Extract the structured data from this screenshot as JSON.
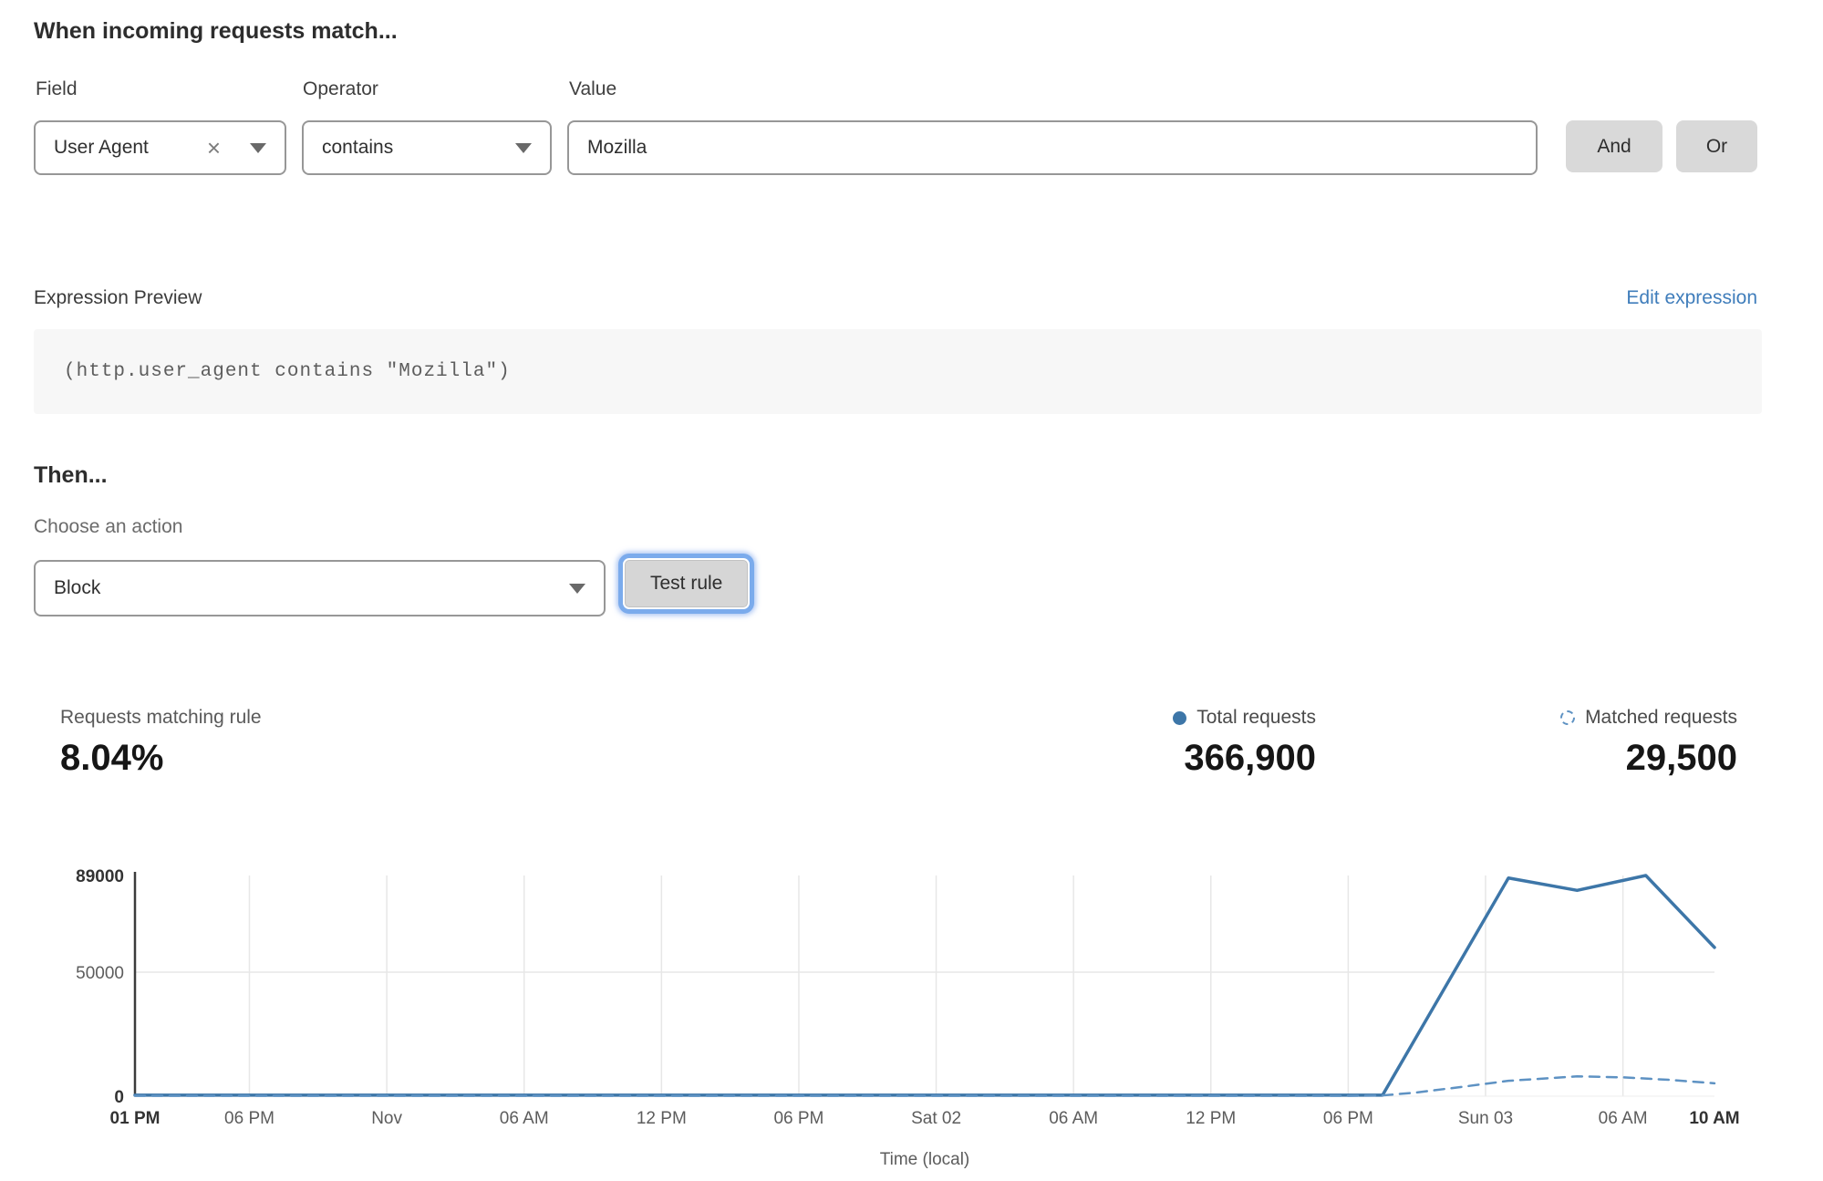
{
  "match": {
    "heading": "When incoming requests match...",
    "field_label": "Field",
    "field_value": "User Agent",
    "clear_icon": "×",
    "operator_label": "Operator",
    "operator_value": "contains",
    "value_label": "Value",
    "value_text": "Mozilla",
    "and_label": "And",
    "or_label": "Or"
  },
  "expression": {
    "label": "Expression Preview",
    "edit_link": "Edit expression",
    "code": "(http.user_agent contains \"Mozilla\")"
  },
  "then": {
    "heading": "Then...",
    "action_label": "Choose an action",
    "action_value": "Block",
    "test_button_label": "Test rule"
  },
  "stats": {
    "matching_label": "Requests matching rule",
    "matching_value": "8.04%",
    "total_value": "366,900",
    "matched_value": "29,500"
  },
  "colors": {
    "accent_blue": "#3d76a8",
    "dashed_blue": "#5e92c3",
    "link_blue": "#3f7dbb",
    "focus_ring": "#7babec",
    "button_gray": "#d9d9d9",
    "grid_gray": "#e7e7e7"
  },
  "chart_data": {
    "type": "line",
    "title": "",
    "xlabel": "Time (local)",
    "ylabel": "",
    "x_unit": "hours after first tick (01 PM)",
    "xlim": [
      0,
      69
    ],
    "ylim": [
      0,
      89000
    ],
    "grid": true,
    "legend_position": "above-chart-right",
    "y_ticks": [
      {
        "v": 0,
        "label": "0",
        "bold": true
      },
      {
        "v": 50000,
        "label": "50000",
        "bold": false
      },
      {
        "v": 89000,
        "label": "89000",
        "bold": true
      }
    ],
    "x_ticks": [
      {
        "h": 0,
        "label": "01 PM",
        "bold": true,
        "grid": false
      },
      {
        "h": 5,
        "label": "06 PM",
        "bold": false,
        "grid": true
      },
      {
        "h": 11,
        "label": "Nov",
        "bold": false,
        "grid": true
      },
      {
        "h": 17,
        "label": "06 AM",
        "bold": false,
        "grid": true
      },
      {
        "h": 23,
        "label": "12 PM",
        "bold": false,
        "grid": true
      },
      {
        "h": 29,
        "label": "06 PM",
        "bold": false,
        "grid": true
      },
      {
        "h": 35,
        "label": "Sat 02",
        "bold": false,
        "grid": true
      },
      {
        "h": 41,
        "label": "06 AM",
        "bold": false,
        "grid": true
      },
      {
        "h": 47,
        "label": "12 PM",
        "bold": false,
        "grid": true
      },
      {
        "h": 53,
        "label": "06 PM",
        "bold": false,
        "grid": true
      },
      {
        "h": 59,
        "label": "Sun 03",
        "bold": false,
        "grid": true
      },
      {
        "h": 65,
        "label": "06 AM",
        "bold": false,
        "grid": true
      },
      {
        "h": 69,
        "label": "10 AM",
        "bold": true,
        "grid": false
      }
    ],
    "series": [
      {
        "name": "Total requests",
        "style": "solid",
        "color": "#3d76a8",
        "points": [
          [
            0,
            400
          ],
          [
            5,
            400
          ],
          [
            11,
            400
          ],
          [
            17,
            400
          ],
          [
            23,
            400
          ],
          [
            29,
            400
          ],
          [
            35,
            400
          ],
          [
            41,
            400
          ],
          [
            47,
            400
          ],
          [
            53,
            400
          ],
          [
            54.5,
            400
          ],
          [
            60,
            88000
          ],
          [
            63,
            83000
          ],
          [
            66,
            89000
          ],
          [
            69,
            60000
          ]
        ]
      },
      {
        "name": "Matched requests",
        "style": "dashed",
        "color": "#5e92c3",
        "points": [
          [
            0,
            150
          ],
          [
            5,
            150
          ],
          [
            11,
            150
          ],
          [
            17,
            150
          ],
          [
            23,
            150
          ],
          [
            29,
            150
          ],
          [
            35,
            150
          ],
          [
            41,
            150
          ],
          [
            47,
            150
          ],
          [
            53,
            150
          ],
          [
            54.5,
            300
          ],
          [
            56,
            1500
          ],
          [
            58,
            3800
          ],
          [
            60,
            6200
          ],
          [
            63,
            8000
          ],
          [
            65,
            7600
          ],
          [
            67,
            6600
          ],
          [
            69,
            5200
          ]
        ]
      }
    ]
  }
}
